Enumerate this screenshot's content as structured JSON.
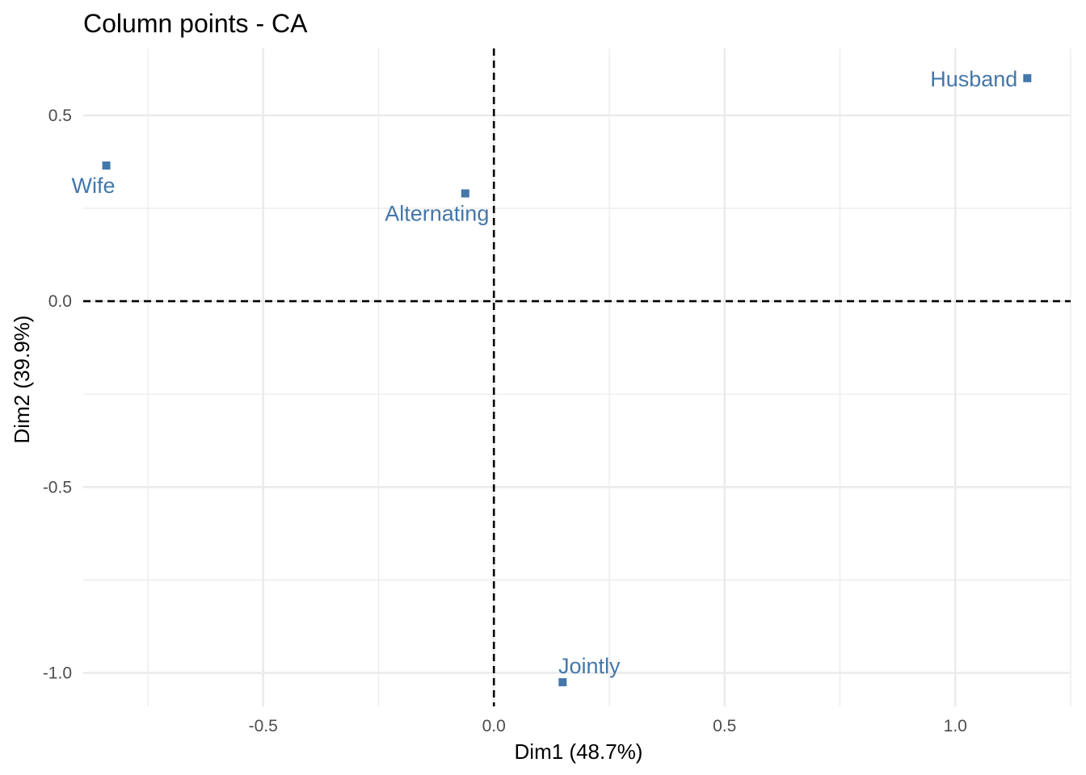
{
  "chart_data": {
    "type": "scatter",
    "title": "Column points - CA",
    "xlabel": "Dim1 (48.7%)",
    "ylabel": "Dim2 (39.9%)",
    "xlim": [
      -0.89,
      1.25
    ],
    "ylim": [
      -1.09,
      0.68
    ],
    "x_ticks": [
      -0.5,
      0.0,
      0.5,
      1.0
    ],
    "x_tick_labels": [
      "-0.5",
      "0.0",
      "0.5",
      "1.0"
    ],
    "y_ticks": [
      -1.0,
      -0.5,
      0.0,
      0.5
    ],
    "y_tick_labels": [
      "-1.0",
      "-0.5",
      "0.0",
      "0.5"
    ],
    "grid": true,
    "reference_lines": {
      "x": 0,
      "y": 0
    },
    "point_color": "#4477aa",
    "points": [
      {
        "label": "Wife",
        "x": -0.84,
        "y": 0.365
      },
      {
        "label": "Alternating",
        "x": -0.062,
        "y": 0.29
      },
      {
        "label": "Jointly",
        "x": 0.149,
        "y": -1.025
      },
      {
        "label": "Husband",
        "x": 1.156,
        "y": 0.6
      }
    ]
  }
}
